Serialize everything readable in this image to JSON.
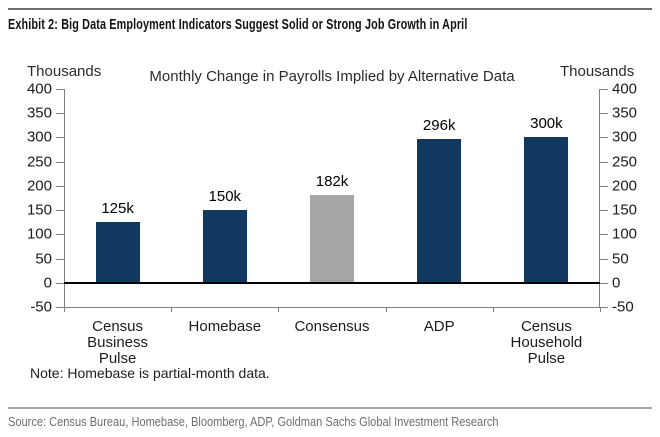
{
  "header": {
    "title": "Exhibit 2: Big Data Employment Indicators Suggest Solid or Strong Job Growth in April"
  },
  "chart": {
    "title": "Monthly Change in Payrolls Implied by Alternative Data",
    "left_axis_label": "Thousands",
    "right_axis_label": "Thousands",
    "note": "Note: Homebase is partial-month data."
  },
  "chart_data": {
    "type": "bar",
    "title": "Monthly Change in Payrolls Implied by Alternative Data",
    "categories": [
      "Census Business Pulse",
      "Homebase",
      "Consensus",
      "ADP",
      "Census Household Pulse"
    ],
    "values": [
      125,
      150,
      182,
      296,
      300
    ],
    "value_labels": [
      "125k",
      "150k",
      "182k",
      "296k",
      "300k"
    ],
    "bar_colors": [
      "#11395f",
      "#11395f",
      "#a6a6a6",
      "#11395f",
      "#11395f"
    ],
    "ylabel_left": "Thousands",
    "ylabel_right": "Thousands",
    "ylim": [
      -50,
      400
    ],
    "yticks": [
      400,
      350,
      300,
      250,
      200,
      150,
      100,
      50,
      0,
      -50
    ],
    "grid": false,
    "legend_position": "none",
    "colors": {
      "bar_navy": "#11395f",
      "bar_gray": "#a6a6a6",
      "zero_line": "#000000",
      "axis": "#808080"
    }
  },
  "footer": {
    "source": "Source: Census Bureau, Homebase, Bloomberg, ADP, Goldman Sachs Global Investment Research"
  }
}
